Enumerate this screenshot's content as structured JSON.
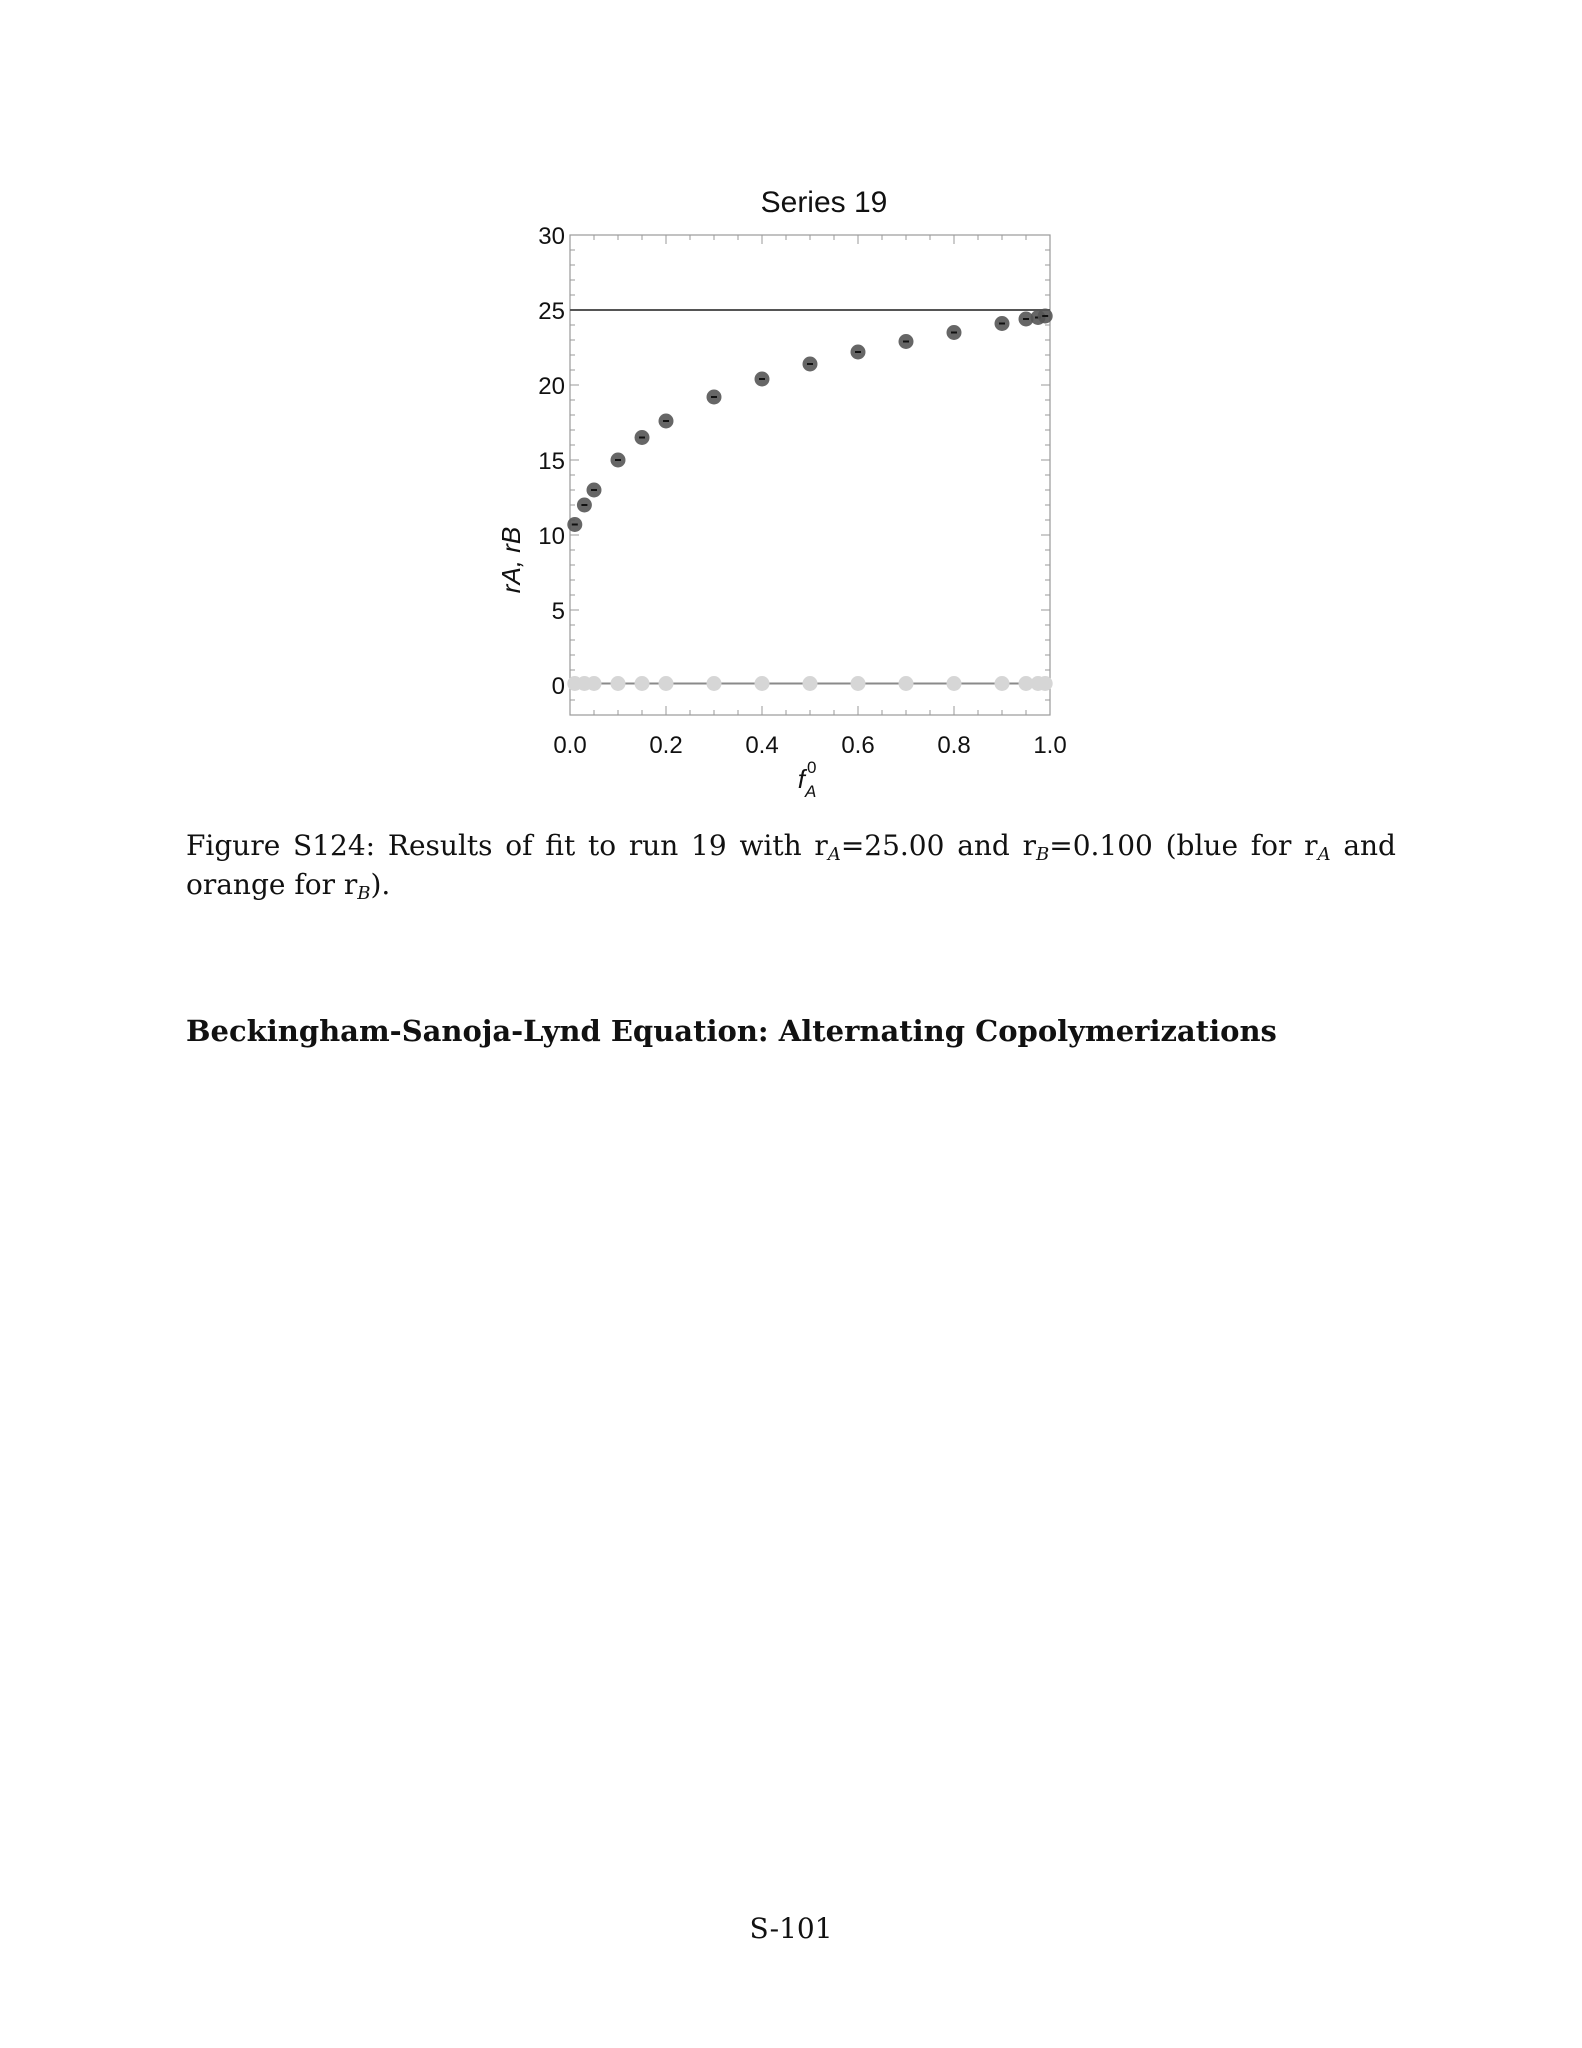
{
  "chart_data": {
    "type": "scatter",
    "title": "Series 19",
    "xlabel": "f",
    "xlabel_sup": "0",
    "xlabel_sub": "A",
    "ylabel": "rA, rB",
    "xlim": [
      0,
      1
    ],
    "ylim": [
      -2,
      30
    ],
    "xticks": [
      "0.0",
      "0.2",
      "0.4",
      "0.6",
      "0.8",
      "1.0"
    ],
    "xtick_values": [
      0,
      0.2,
      0.4,
      0.6,
      0.8,
      1.0
    ],
    "yticks": [
      "0",
      "5",
      "10",
      "15",
      "20",
      "25",
      "30"
    ],
    "ytick_values": [
      0,
      5,
      10,
      15,
      20,
      25,
      30
    ],
    "grid": false,
    "series": [
      {
        "color": "#555555",
        "x": [
          0.01,
          0.03,
          0.05,
          0.1,
          0.15,
          0.2,
          0.3,
          0.4,
          0.5,
          0.6,
          0.7,
          0.8,
          0.9,
          0.95,
          0.975,
          0.99
        ],
        "y": [
          10.7,
          12.0,
          13.0,
          15.0,
          16.5,
          17.6,
          19.2,
          20.4,
          21.4,
          22.2,
          22.9,
          23.5,
          24.1,
          24.4,
          24.5,
          24.6
        ]
      },
      {
        "color": "#d6d6d6",
        "x": [
          0.01,
          0.03,
          0.05,
          0.1,
          0.15,
          0.2,
          0.3,
          0.4,
          0.5,
          0.6,
          0.7,
          0.8,
          0.9,
          0.95,
          0.975,
          0.99
        ],
        "y": [
          0.1,
          0.1,
          0.1,
          0.1,
          0.1,
          0.1,
          0.1,
          0.1,
          0.1,
          0.1,
          0.1,
          0.1,
          0.1,
          0.1,
          0.1,
          0.1
        ]
      }
    ],
    "reference_lines": [
      {
        "y": 25.0,
        "color": "#555555"
      },
      {
        "y": 0.1,
        "color": "#8a8a8a"
      }
    ]
  },
  "caption": {
    "prefix": "Figure S124:  Results of fit to run 19 with r",
    "sub1": "A",
    "mid1": "=25.00 and r",
    "sub2": "B",
    "mid2": "=0.100 (blue for r",
    "sub3": "A",
    "mid3": " and orange for r",
    "sub4": "B",
    "suffix": ")."
  },
  "heading": "Beckingham-Sanoja-Lynd Equation: Alternating Copolymerizations",
  "page_number": "S-101"
}
